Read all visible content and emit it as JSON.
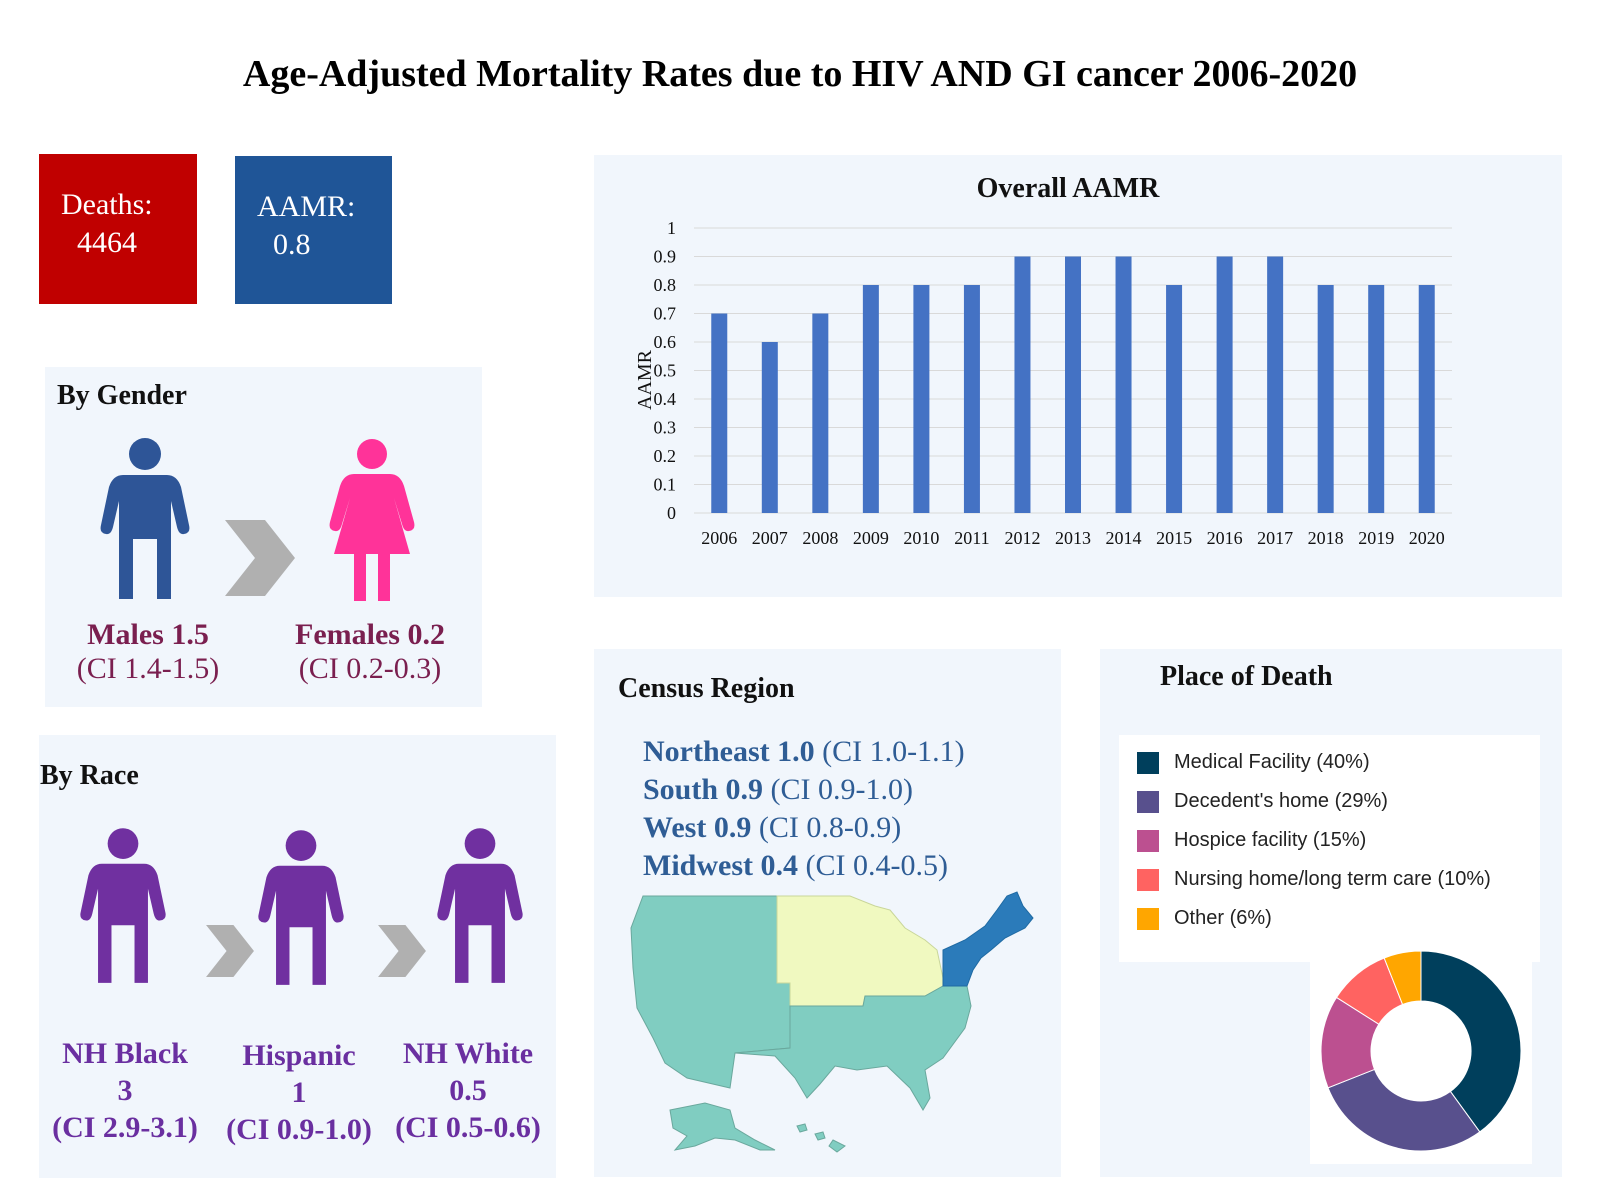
{
  "title": "Age-Adjusted Mortality Rates due to HIV AND GI cancer 2006-2020",
  "kpis": {
    "deaths_label": "Deaths:",
    "deaths_value": "4464",
    "aamr_label": "AAMR:",
    "aamr_value": "0.8",
    "deaths_color": "#c00000",
    "aamr_color": "#1f5597"
  },
  "gender": {
    "title": "By Gender",
    "male_label": "Males 1.5",
    "male_ci": "(CI 1.4-1.5)",
    "female_label": "Females 0.2",
    "female_ci": "(CI 0.2-0.3)",
    "male_icon": "male-person-icon",
    "female_icon": "female-person-icon",
    "male_color": "#2e5597",
    "female_color": "#ff3399"
  },
  "race": {
    "title": "By Race",
    "groups": [
      {
        "name": "NH Black",
        "value": "3",
        "ci": "(CI 2.9-3.1)"
      },
      {
        "name": "Hispanic",
        "value": "1",
        "ci": "(CI 0.9-1.0)"
      },
      {
        "name": "NH White",
        "value": "0.5",
        "ci": "(CI 0.5-0.6)"
      }
    ],
    "icon": "person-icon",
    "color": "#7030a0"
  },
  "region": {
    "title": "Census Region",
    "items": [
      {
        "name": "Northeast 1.0",
        "ci": "(CI 1.0-1.1)"
      },
      {
        "name": "South 0.9",
        "ci": "(CI 0.9-1.0)"
      },
      {
        "name": "West 0.9",
        "ci": "(CI 0.8-0.9)"
      },
      {
        "name": "Midwest 0.4",
        "ci": "(CI 0.4-0.5)"
      }
    ],
    "map_colors": {
      "Northeast": "#2b7bba",
      "South": "#80cdc1",
      "West": "#80cdc1",
      "Midwest": "#f0f9c0"
    }
  },
  "place_of_death": {
    "title": "Place of Death",
    "legend": [
      {
        "label": "Medical Facility (40%)",
        "color": "#003f5c"
      },
      {
        "label": "Decedent's home (29%)",
        "color": "#58508d"
      },
      {
        "label": "Hospice facility (15%)",
        "color": "#bc5090"
      },
      {
        "label": "Nursing home/long term care (10%)",
        "color": "#ff6361"
      },
      {
        "label": "Other (6%)",
        "color": "#ffa600"
      }
    ]
  },
  "chart_data": [
    {
      "type": "bar",
      "title": "Overall AAMR",
      "ylabel": "AAMR",
      "xlabel": "",
      "categories": [
        "2006",
        "2007",
        "2008",
        "2009",
        "2010",
        "2011",
        "2012",
        "2013",
        "2014",
        "2015",
        "2016",
        "2017",
        "2018",
        "2019",
        "2020"
      ],
      "values": [
        0.7,
        0.6,
        0.7,
        0.8,
        0.8,
        0.8,
        0.9,
        0.9,
        0.9,
        0.8,
        0.9,
        0.9,
        0.8,
        0.8,
        0.8
      ],
      "yticks": [
        "0",
        "0.1",
        "0.2",
        "0.3",
        "0.4",
        "0.5",
        "0.6",
        "0.7",
        "0.8",
        "0.9",
        "1"
      ],
      "ylim": [
        0,
        1
      ],
      "grid": true,
      "bar_color": "#4472c4"
    },
    {
      "type": "pie",
      "title": "",
      "donut": true,
      "labels": [
        "Medical Facility",
        "Decedent's home",
        "Hospice facility",
        "Nursing home/long term care",
        "Other"
      ],
      "values": [
        40,
        29,
        15,
        10,
        6
      ],
      "colors": [
        "#003f5c",
        "#58508d",
        "#bc5090",
        "#ff6361",
        "#ffa600"
      ]
    }
  ]
}
